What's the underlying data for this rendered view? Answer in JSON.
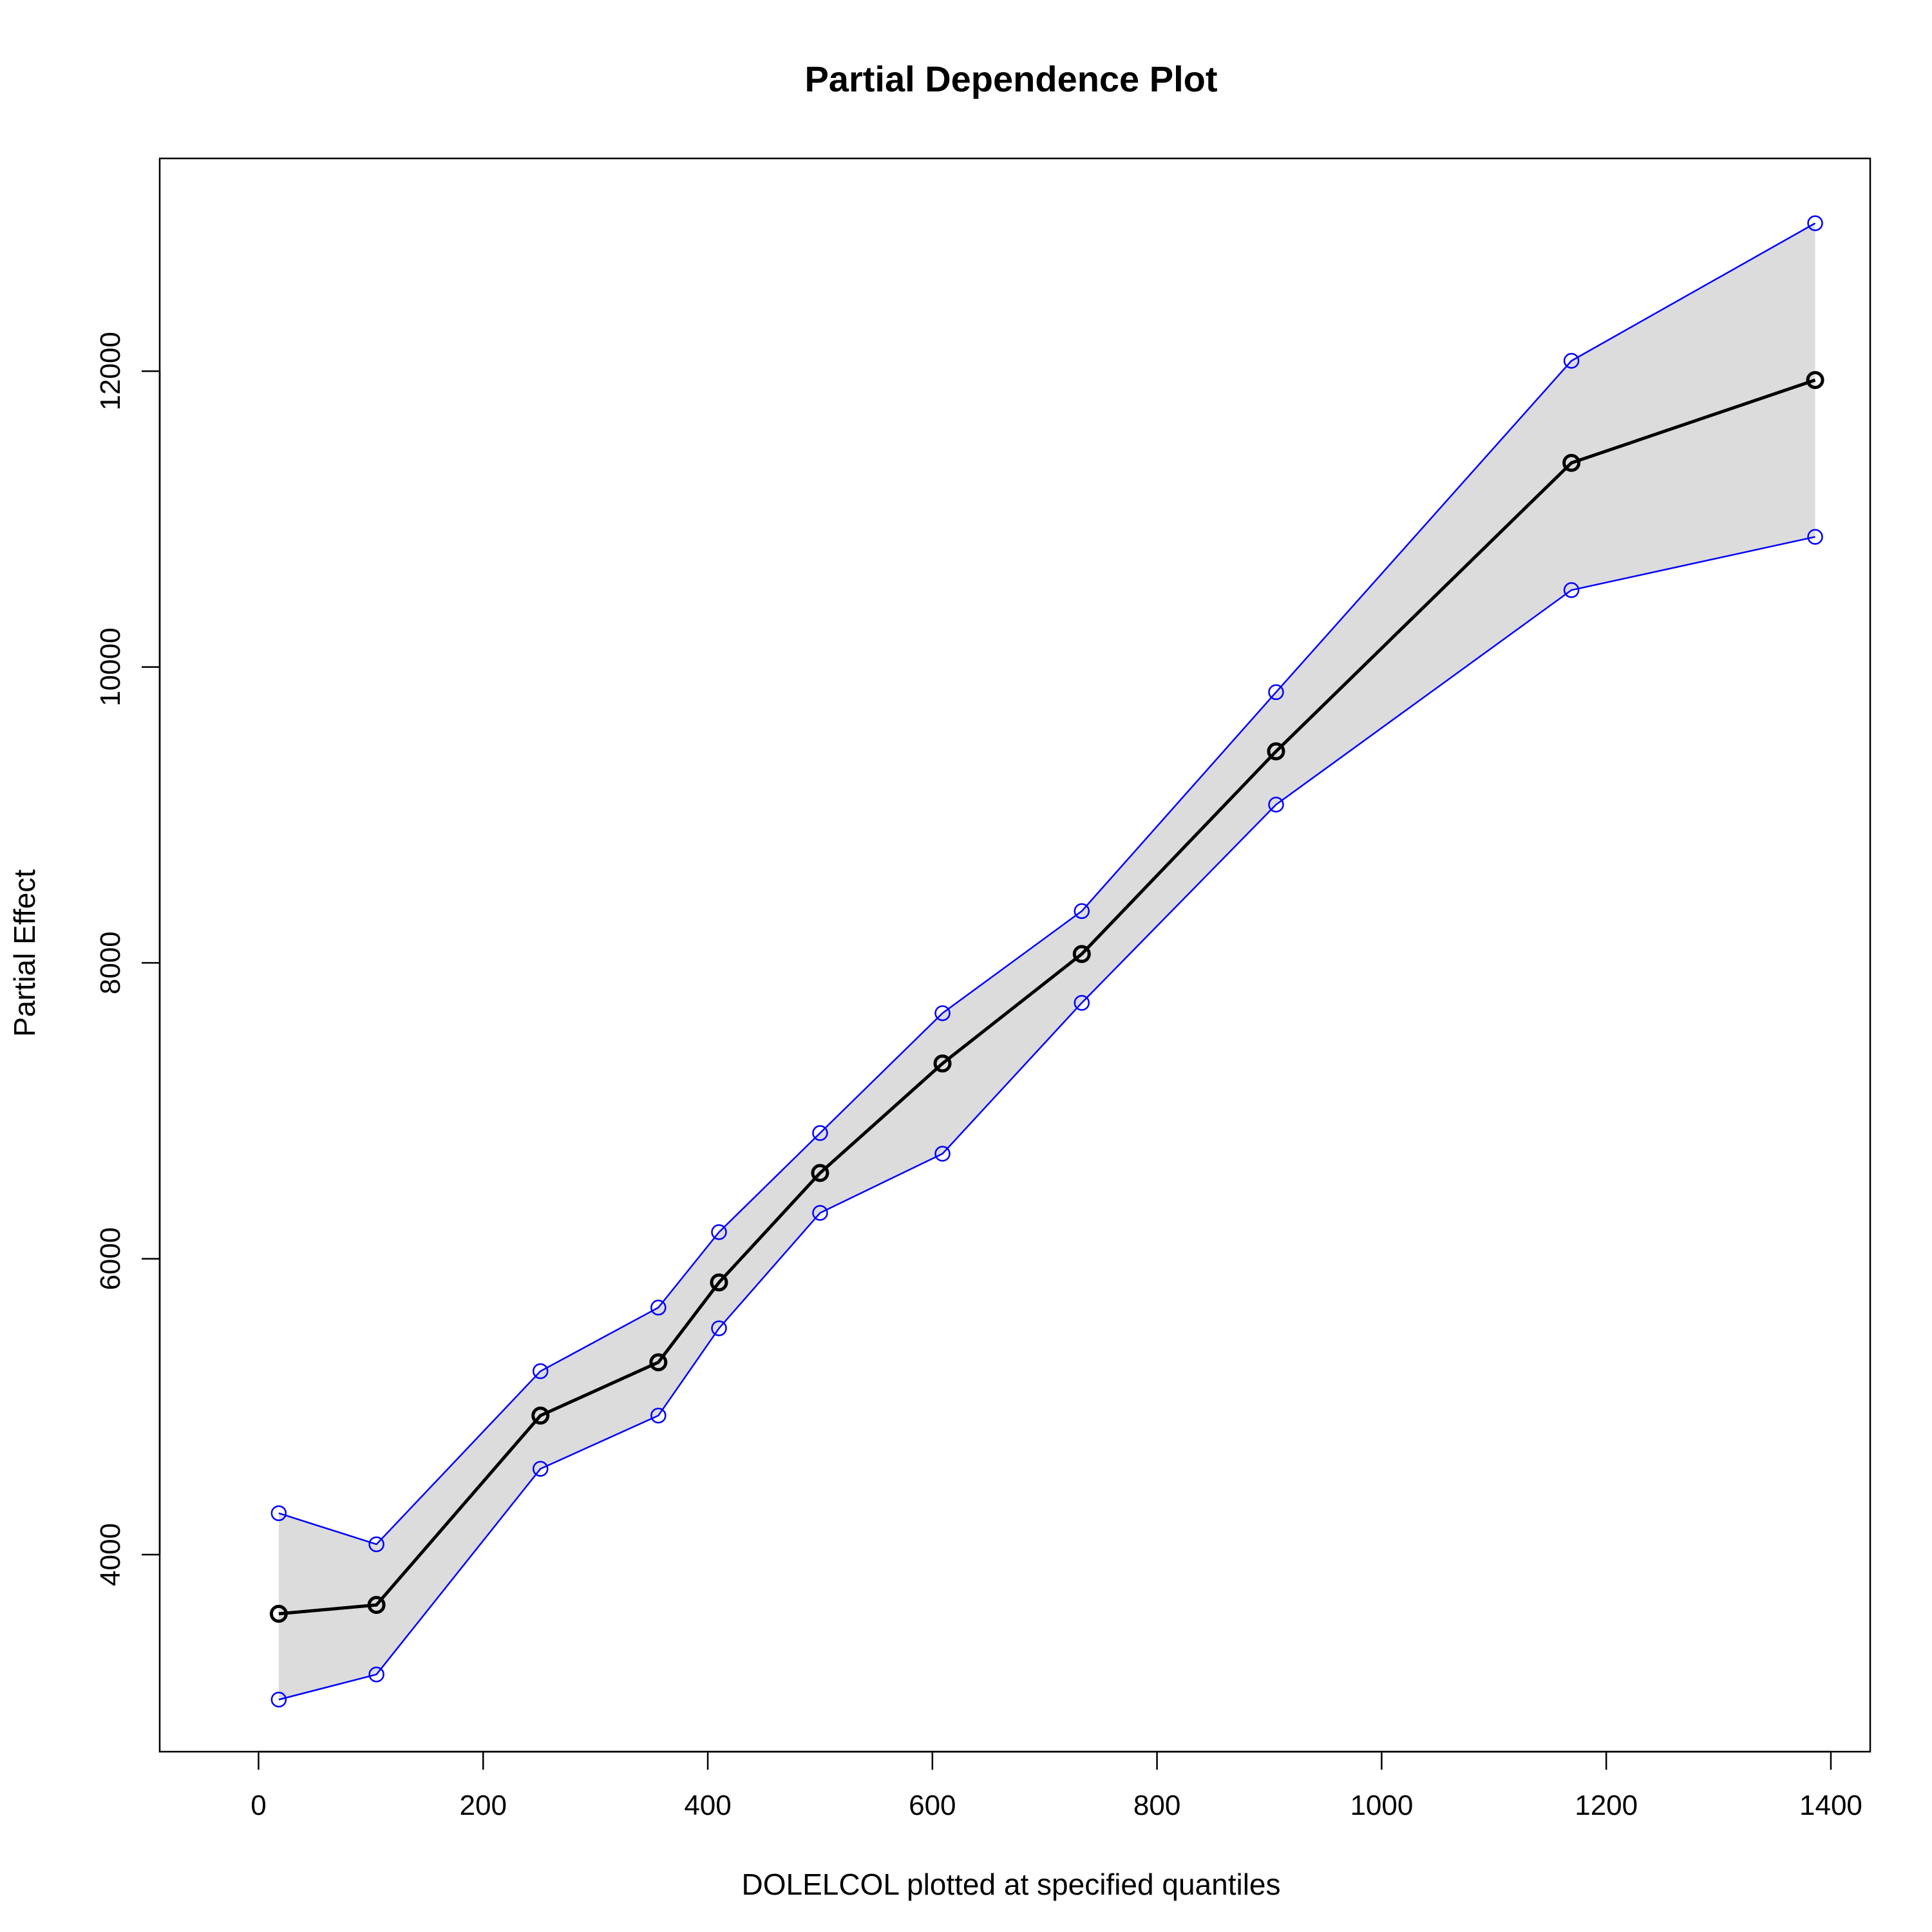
{
  "chart_data": {
    "type": "line",
    "title": "Partial Dependence Plot",
    "xlabel": "DOLELCOL plotted at specified quantiles",
    "ylabel": "Partial Effect",
    "xlim": [
      -88,
      1435
    ],
    "ylim": [
      2668,
      13438
    ],
    "x_ticks": [
      0,
      200,
      400,
      600,
      800,
      1000,
      1200,
      1400
    ],
    "y_ticks": [
      4000,
      6000,
      8000,
      10000,
      12000
    ],
    "grid": false,
    "legend": "none",
    "x": [
      18,
      105,
      251,
      356,
      410,
      500,
      609,
      733,
      906,
      1169,
      1386
    ],
    "series": [
      {
        "role": "estimate",
        "color": "#000000",
        "marker": "circle",
        "values": [
          3600,
          3660,
          4940,
          5300,
          5840,
          6580,
          7320,
          8060,
          9430,
          11380,
          11940
        ]
      },
      {
        "role": "upper",
        "color": "#0000ff",
        "marker": "circle",
        "values": [
          4280,
          4070,
          5240,
          5670,
          6180,
          6850,
          7660,
          8350,
          9830,
          12070,
          13000
        ]
      },
      {
        "role": "lower",
        "color": "#0000ff",
        "marker": "circle",
        "values": [
          3020,
          3190,
          4580,
          4940,
          5530,
          6310,
          6710,
          7730,
          9070,
          10520,
          10880
        ]
      }
    ],
    "band_color": "#dcdcdc"
  }
}
